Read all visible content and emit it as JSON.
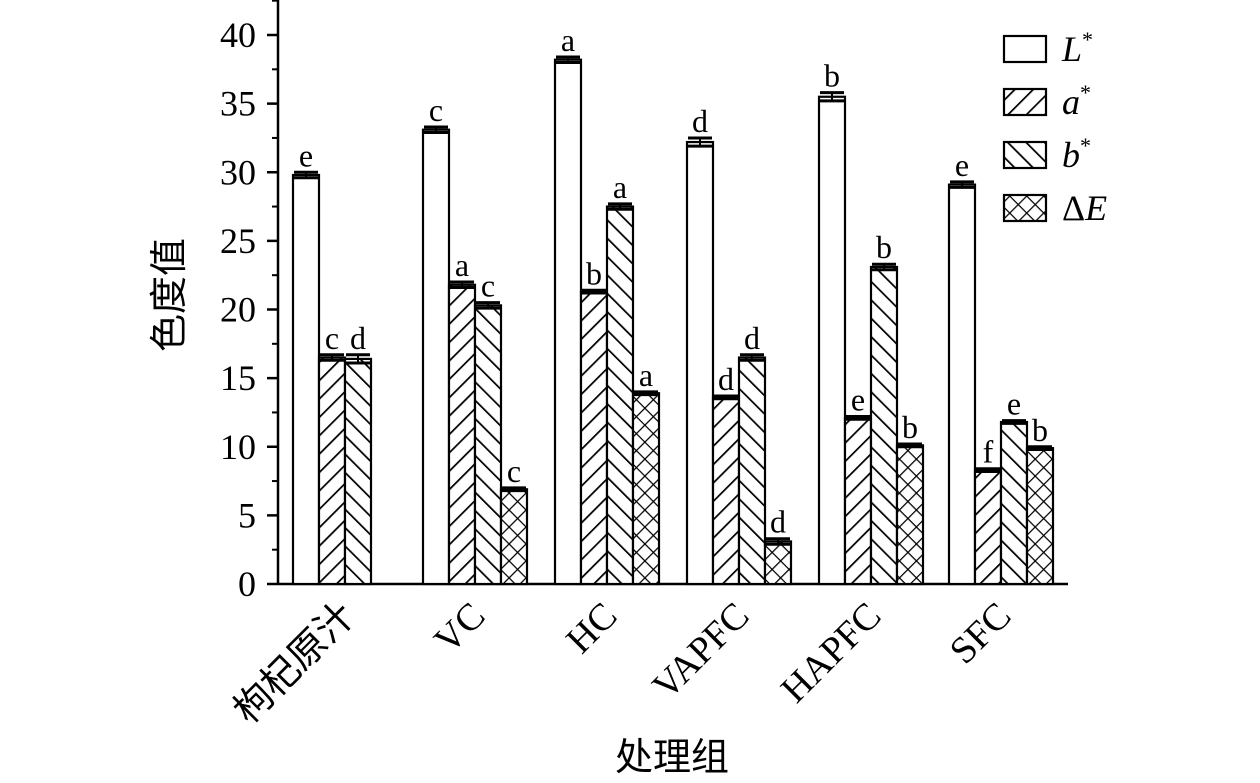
{
  "chart_data": {
    "type": "bar",
    "title": "",
    "xlabel": "处理组",
    "ylabel": "色度值",
    "ylim": [
      0,
      42
    ],
    "yticks": [
      0,
      5,
      10,
      15,
      20,
      25,
      30,
      35,
      40
    ],
    "grid": false,
    "legend_position": "top-right",
    "categories": [
      "枸杞原汁",
      "VC",
      "HC",
      "VAPFC",
      "HAPFC",
      "SFC"
    ],
    "series": [
      {
        "name": "L*",
        "legend_main": "L",
        "legend_sup": "*",
        "pattern": "open",
        "values": [
          29.8,
          33.1,
          38.2,
          32.2,
          35.5,
          29.1
        ],
        "errors": [
          0.2,
          0.2,
          0.2,
          0.3,
          0.3,
          0.2
        ],
        "letters": [
          "e",
          "c",
          "a",
          "d",
          "b",
          "e"
        ]
      },
      {
        "name": "a*",
        "legend_main": "a",
        "legend_sup": "*",
        "pattern": "diagonal-up",
        "values": [
          16.5,
          21.8,
          21.3,
          13.6,
          12.1,
          8.3
        ],
        "errors": [
          0.2,
          0.2,
          0.1,
          0.1,
          0.1,
          0.1
        ],
        "letters": [
          "c",
          "a",
          "b",
          "d",
          "e",
          "f"
        ]
      },
      {
        "name": "b*",
        "legend_main": "b",
        "legend_sup": "*",
        "pattern": "diagonal-down",
        "values": [
          16.4,
          20.3,
          27.5,
          16.5,
          23.1,
          11.8
        ],
        "errors": [
          0.3,
          0.2,
          0.2,
          0.2,
          0.2,
          0.1
        ],
        "letters": [
          "d",
          "c",
          "a",
          "d",
          "b",
          "e"
        ]
      },
      {
        "name": "ΔE",
        "legend_main": "ΔE",
        "legend_sup": "",
        "pattern": "crosshatch",
        "values": [
          null,
          6.9,
          13.9,
          3.1,
          10.1,
          9.9
        ],
        "errors": [
          null,
          0.1,
          0.1,
          0.2,
          0.1,
          0.1
        ],
        "letters": [
          null,
          "c",
          "a",
          "d",
          "b",
          "b"
        ]
      }
    ]
  }
}
